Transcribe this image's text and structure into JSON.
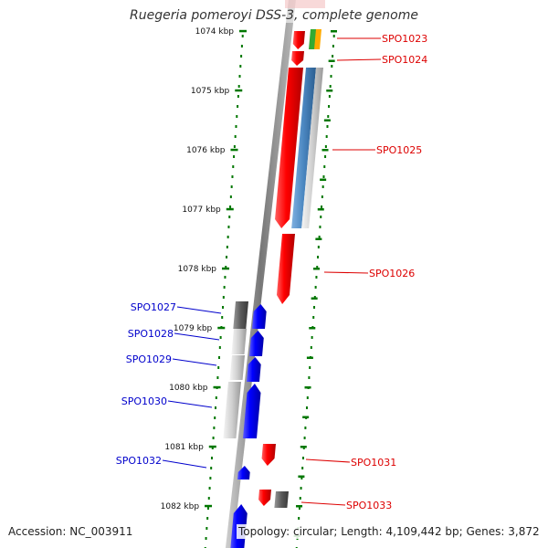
{
  "title": "Ruegeria pomeroyi DSS-3, complete genome",
  "footer": {
    "accession": "Accession: NC_003911",
    "summary": "Topology: circular; Length: 4,109,442 bp; Genes: 3,872"
  },
  "colors": {
    "forward": "#ff0000",
    "reverse": "#0000ff",
    "tick": "#007700",
    "backbone": "#888888"
  },
  "scale": {
    "unit": "kbp",
    "ticks": [
      {
        "label": "1074 kbp",
        "kbp": 1074
      },
      {
        "label": "1075 kbp",
        "kbp": 1075
      },
      {
        "label": "1076 kbp",
        "kbp": 1076
      },
      {
        "label": "1077 kbp",
        "kbp": 1077
      },
      {
        "label": "1078 kbp",
        "kbp": 1078
      },
      {
        "label": "1079 kbp",
        "kbp": 1079
      },
      {
        "label": "1080 kbp",
        "kbp": 1080
      },
      {
        "label": "1081 kbp",
        "kbp": 1081
      },
      {
        "label": "1082 kbp",
        "kbp": 1082
      }
    ]
  },
  "genes": [
    {
      "name": "SPO1023",
      "strand": "+"
    },
    {
      "name": "SPO1024",
      "strand": "+"
    },
    {
      "name": "SPO1025",
      "strand": "+"
    },
    {
      "name": "SPO1026",
      "strand": "+"
    },
    {
      "name": "SPO1027",
      "strand": "-"
    },
    {
      "name": "SPO1028",
      "strand": "-"
    },
    {
      "name": "SPO1029",
      "strand": "-"
    },
    {
      "name": "SPO1030",
      "strand": "-"
    },
    {
      "name": "SPO1031",
      "strand": "+"
    },
    {
      "name": "SPO1032",
      "strand": "-"
    },
    {
      "name": "SPO1033",
      "strand": "+"
    }
  ]
}
